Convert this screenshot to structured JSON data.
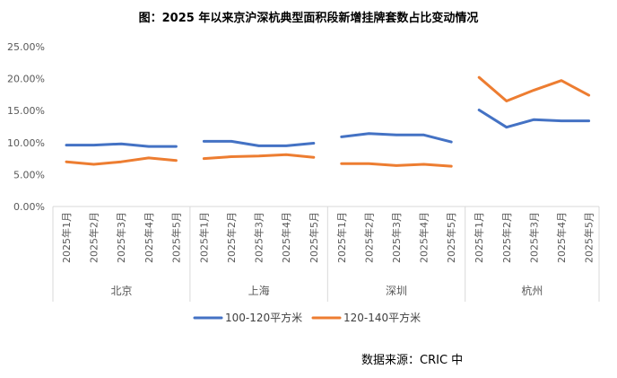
{
  "chart_data": {
    "type": "line",
    "title": "图：2025 年以来京沪深杭典型面积段新增挂牌套数占比变动情况",
    "xlabel": "",
    "ylabel": "",
    "ylim": [
      0,
      25
    ],
    "y_ticks": [
      "0.00%",
      "5.00%",
      "10.00%",
      "15.00%",
      "20.00%",
      "25.00%"
    ],
    "grid": false,
    "legend_position": "bottom",
    "groups": [
      {
        "name": "北京",
        "categories": [
          "2025年1月",
          "2025年2月",
          "2025年3月",
          "2025年4月",
          "2025年5月"
        ]
      },
      {
        "name": "上海",
        "categories": [
          "2025年1月",
          "2025年2月",
          "2025年3月",
          "2025年4月",
          "2025年5月"
        ]
      },
      {
        "name": "深圳",
        "categories": [
          "2025年1月",
          "2025年2月",
          "2025年3月",
          "2025年4月",
          "2025年5月"
        ]
      },
      {
        "name": "杭州",
        "categories": [
          "2025年1月",
          "2025年2月",
          "2025年3月",
          "2025年4月",
          "2025年5月"
        ]
      }
    ],
    "series": [
      {
        "name": "100-120平方米",
        "color": "#4472c4",
        "values": [
          [
            9.6,
            9.6,
            9.8,
            9.4,
            9.4
          ],
          [
            10.2,
            10.2,
            9.5,
            9.5,
            9.9
          ],
          [
            10.9,
            11.4,
            11.2,
            11.2,
            10.1
          ],
          [
            15.1,
            12.4,
            13.6,
            13.4,
            13.4
          ]
        ]
      },
      {
        "name": "120-140平方米",
        "color": "#ed7d31",
        "values": [
          [
            7.0,
            6.6,
            7.0,
            7.6,
            7.2
          ],
          [
            7.5,
            7.8,
            7.9,
            8.1,
            7.7
          ],
          [
            6.7,
            6.7,
            6.4,
            6.6,
            6.3
          ],
          [
            20.2,
            16.5,
            18.2,
            19.7,
            17.4
          ]
        ]
      }
    ]
  },
  "source": "数据来源：CRIC 中"
}
